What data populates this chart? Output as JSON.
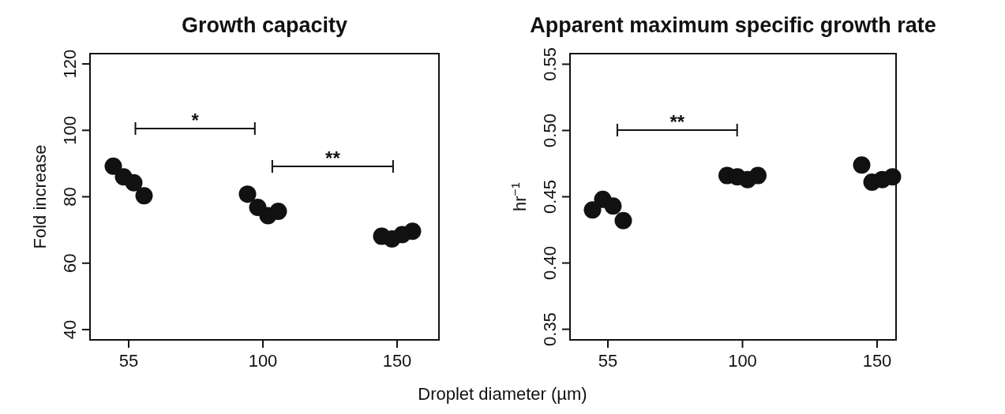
{
  "chart_data": [
    {
      "type": "scatter",
      "title": "Growth capacity",
      "xlabel": "Droplet diameter (µm)",
      "ylabel": "Fold increase",
      "categories": [
        "55",
        "100",
        "150"
      ],
      "ylim": [
        36.9,
        123.1
      ],
      "yticks": [
        40,
        60,
        80,
        100,
        120
      ],
      "marker": "circle",
      "grid": false,
      "series": [
        {
          "color": "#111111",
          "x": [
            "55",
            "55",
            "55",
            "55",
            "100",
            "100",
            "100",
            "100",
            "150",
            "150",
            "150",
            "150"
          ],
          "values": [
            89.2,
            86.0,
            84.2,
            80.3,
            80.8,
            76.8,
            74.3,
            75.6,
            68.1,
            67.3,
            68.6,
            69.6
          ]
        }
      ],
      "annotations": [
        "*",
        "**"
      ]
    },
    {
      "type": "scatter",
      "title": "Apparent maximum specific growth rate",
      "ylabel": "hr$^{−1}$",
      "categories": [
        "55",
        "100",
        "150"
      ],
      "ylim": [
        0.342,
        0.558
      ],
      "yticks": [
        {
          "value": 0.35,
          "label": "0.35"
        },
        {
          "value": 0.4,
          "label": "0.40"
        },
        {
          "value": 0.45,
          "label": "0.45"
        },
        {
          "value": 0.5,
          "label": "0.50"
        },
        {
          "value": 0.55,
          "label": "0.55"
        }
      ],
      "marker": "circle",
      "grid": false,
      "series": [
        {
          "color": "#111111",
          "x": [
            "55",
            "55",
            "55",
            "55",
            "100",
            "100",
            "100",
            "100",
            "150",
            "150",
            "150",
            "150"
          ],
          "values": [
            0.44,
            0.448,
            0.443,
            0.432,
            0.466,
            0.465,
            0.463,
            0.466,
            0.474,
            0.461,
            0.463,
            0.465
          ]
        }
      ],
      "annotations": [
        "**"
      ]
    }
  ]
}
